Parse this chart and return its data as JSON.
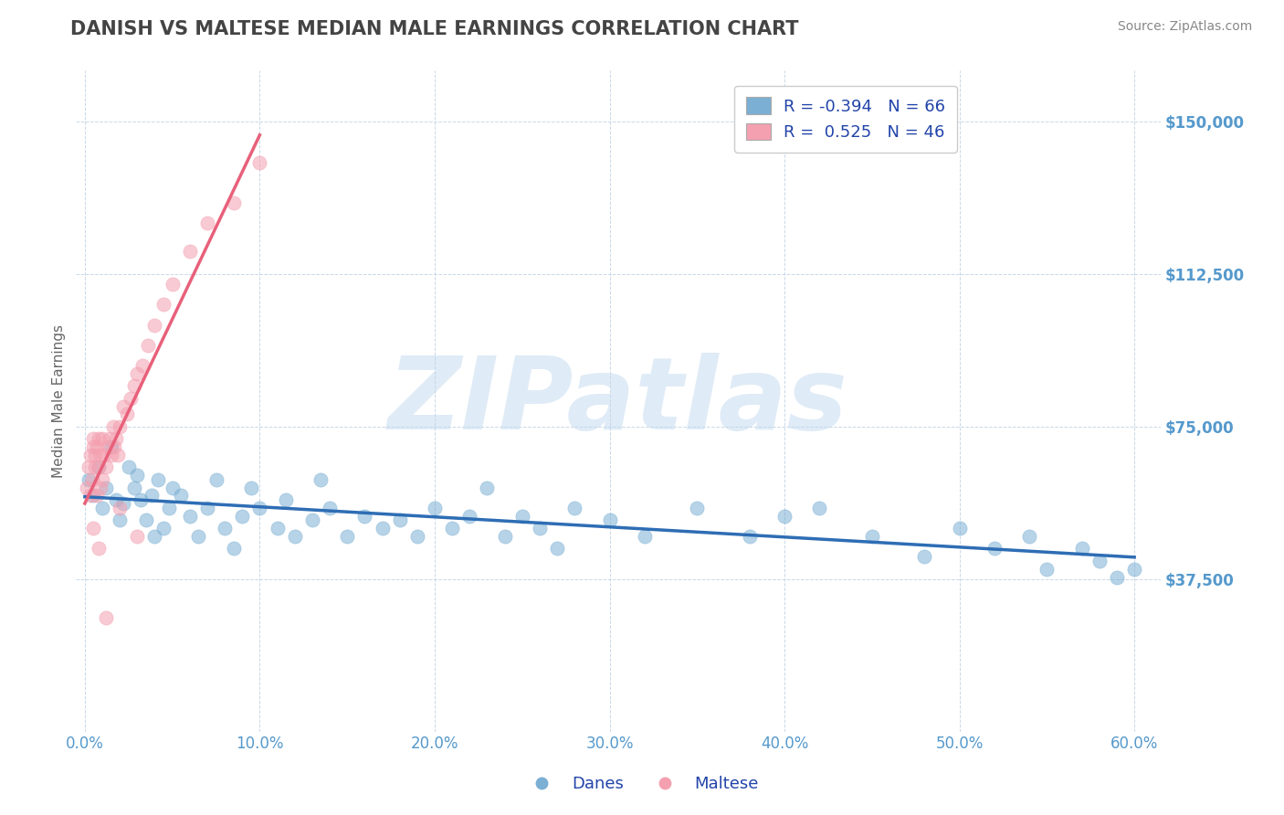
{
  "title": "DANISH VS MALTESE MEDIAN MALE EARNINGS CORRELATION CHART",
  "source": "Source: ZipAtlas.com",
  "ylabel": "Median Male Earnings",
  "xlim": [
    -0.005,
    0.615
  ],
  "ylim": [
    0,
    162500
  ],
  "yticks": [
    37500,
    75000,
    112500,
    150000
  ],
  "ytick_labels": [
    "$37,500",
    "$75,000",
    "$112,500",
    "$150,000"
  ],
  "xticks": [
    0.0,
    0.1,
    0.2,
    0.3,
    0.4,
    0.5,
    0.6
  ],
  "xtick_labels": [
    "0.0%",
    "10.0%",
    "20.0%",
    "30.0%",
    "40.0%",
    "50.0%",
    "60.0%"
  ],
  "blue_R": -0.394,
  "blue_N": 66,
  "pink_R": 0.525,
  "pink_N": 46,
  "blue_color": "#7BAFD4",
  "pink_color": "#F4A0B0",
  "blue_line_color": "#2E6DB4",
  "pink_line_color": "#E8607A",
  "grid_color": "#C8D8E8",
  "title_color": "#444444",
  "axis_label_color": "#5599CC",
  "watermark_color": "#C0D8EE",
  "legend_R_color": "#2244AA",
  "background_color": "#FFFFFF",
  "danes_x": [
    0.002,
    0.005,
    0.008,
    0.01,
    0.012,
    0.015,
    0.018,
    0.02,
    0.022,
    0.025,
    0.028,
    0.03,
    0.032,
    0.035,
    0.038,
    0.04,
    0.042,
    0.045,
    0.048,
    0.05,
    0.055,
    0.06,
    0.065,
    0.07,
    0.075,
    0.08,
    0.085,
    0.09,
    0.095,
    0.1,
    0.11,
    0.115,
    0.12,
    0.13,
    0.135,
    0.14,
    0.15,
    0.16,
    0.17,
    0.18,
    0.19,
    0.2,
    0.21,
    0.22,
    0.23,
    0.24,
    0.25,
    0.26,
    0.27,
    0.28,
    0.3,
    0.32,
    0.35,
    0.38,
    0.4,
    0.42,
    0.45,
    0.48,
    0.5,
    0.52,
    0.54,
    0.55,
    0.57,
    0.58,
    0.59,
    0.6
  ],
  "danes_y": [
    62000,
    58000,
    65000,
    55000,
    60000,
    70000,
    57000,
    52000,
    56000,
    65000,
    60000,
    63000,
    57000,
    52000,
    58000,
    48000,
    62000,
    50000,
    55000,
    60000,
    58000,
    53000,
    48000,
    55000,
    62000,
    50000,
    45000,
    53000,
    60000,
    55000,
    50000,
    57000,
    48000,
    52000,
    62000,
    55000,
    48000,
    53000,
    50000,
    52000,
    48000,
    55000,
    50000,
    53000,
    60000,
    48000,
    53000,
    50000,
    45000,
    55000,
    52000,
    48000,
    55000,
    48000,
    53000,
    55000,
    48000,
    43000,
    50000,
    45000,
    48000,
    40000,
    45000,
    42000,
    38000,
    40000
  ],
  "maltese_x": [
    0.001,
    0.002,
    0.003,
    0.003,
    0.004,
    0.005,
    0.005,
    0.006,
    0.006,
    0.007,
    0.007,
    0.008,
    0.008,
    0.009,
    0.009,
    0.01,
    0.01,
    0.011,
    0.012,
    0.013,
    0.014,
    0.015,
    0.016,
    0.017,
    0.018,
    0.019,
    0.02,
    0.022,
    0.024,
    0.026,
    0.028,
    0.03,
    0.033,
    0.036,
    0.04,
    0.045,
    0.05,
    0.06,
    0.07,
    0.085,
    0.1,
    0.02,
    0.03,
    0.005,
    0.008,
    0.012
  ],
  "maltese_y": [
    60000,
    65000,
    58000,
    68000,
    62000,
    70000,
    72000,
    65000,
    68000,
    58000,
    70000,
    65000,
    72000,
    60000,
    68000,
    62000,
    72000,
    68000,
    65000,
    70000,
    72000,
    68000,
    75000,
    70000,
    72000,
    68000,
    75000,
    80000,
    78000,
    82000,
    85000,
    88000,
    90000,
    95000,
    100000,
    105000,
    110000,
    118000,
    125000,
    130000,
    140000,
    55000,
    48000,
    50000,
    45000,
    28000
  ]
}
